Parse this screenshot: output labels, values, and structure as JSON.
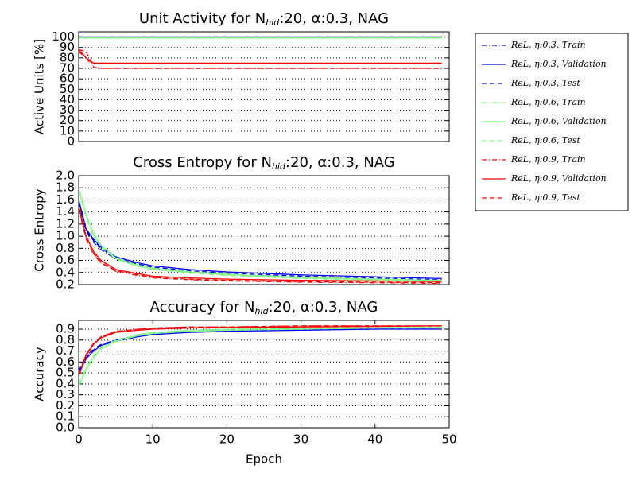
{
  "chart_data": [
    {
      "type": "line",
      "title": {
        "pre": "Unit Activity for N",
        "sub": "hid",
        "post": ":20, α:0.3, NAG"
      },
      "ylabel": "Active Units [%]",
      "legend": "outside right",
      "grid": true,
      "x": [
        0,
        1,
        2,
        3,
        5,
        8,
        10,
        15,
        20,
        30,
        40,
        49
      ],
      "xlim": [
        0,
        50
      ],
      "ylim": [
        0,
        105
      ],
      "yticks": [
        0,
        10,
        20,
        30,
        40,
        50,
        60,
        70,
        80,
        90,
        100
      ],
      "series": [
        {
          "name": "ReL, η:0.3, Train",
          "color": "#0000ff",
          "dash": "dashdot",
          "values": [
            100,
            100,
            100,
            100,
            100,
            100,
            100,
            100,
            100,
            100,
            100,
            100
          ]
        },
        {
          "name": "ReL, η:0.3, Validation",
          "color": "#0000ff",
          "dash": "solid",
          "values": [
            100,
            100,
            100,
            100,
            100,
            100,
            100,
            100,
            100,
            100,
            100,
            100
          ]
        },
        {
          "name": "ReL, η:0.3, Test",
          "color": "#0000ff",
          "dash": "dashed",
          "values": [
            100,
            100,
            100,
            100,
            100,
            100,
            100,
            100,
            100,
            100,
            100,
            100
          ]
        },
        {
          "name": "ReL, η:0.6, Train",
          "color": "#80ff80",
          "dash": "dashdot",
          "values": [
            99,
            99,
            99,
            99,
            99,
            99,
            99,
            99,
            99,
            99,
            99,
            99
          ]
        },
        {
          "name": "ReL, η:0.6, Validation",
          "color": "#80ff80",
          "dash": "solid",
          "values": [
            99,
            99,
            99,
            99,
            99,
            99,
            99,
            99,
            99,
            99,
            99,
            99
          ]
        },
        {
          "name": "ReL, η:0.6, Test",
          "color": "#80ff80",
          "dash": "dashed",
          "values": [
            99,
            99,
            99,
            99,
            99,
            99,
            99,
            99,
            99,
            99,
            99,
            99
          ]
        },
        {
          "name": "ReL, η:0.9, Train",
          "color": "#ff0000",
          "dash": "dashdot",
          "values": [
            86,
            80,
            71,
            70,
            70,
            70,
            70,
            70,
            70,
            70,
            70,
            70
          ]
        },
        {
          "name": "ReL, η:0.9, Validation",
          "color": "#ff0000",
          "dash": "solid",
          "values": [
            88,
            80,
            75,
            75,
            75,
            75,
            75,
            75,
            75,
            75,
            75,
            75
          ]
        },
        {
          "name": "ReL, η:0.9, Test",
          "color": "#ff0000",
          "dash": "dashed",
          "values": [
            88,
            86,
            71,
            70,
            70,
            70,
            70,
            70,
            70,
            70,
            70,
            70
          ]
        }
      ]
    },
    {
      "type": "line",
      "title": {
        "pre": "Cross Entropy for N",
        "sub": "hid",
        "post": ":20, α:0.3, NAG"
      },
      "ylabel": "Cross Entropy",
      "grid": true,
      "x": [
        0,
        1,
        2,
        3,
        5,
        8,
        10,
        15,
        20,
        30,
        40,
        49
      ],
      "xlim": [
        0,
        50
      ],
      "ylim": [
        0.2,
        2.0
      ],
      "yticks": [
        0.2,
        0.4,
        0.6,
        0.8,
        {
          "value": 1,
          "label": "1.0"
        },
        1.2,
        1.4,
        1.6,
        1.8,
        {
          "value": 2,
          "label": "2.0"
        }
      ],
      "series": [
        {
          "color": "#0000ff",
          "dash": "dashdot",
          "values": [
            1.55,
            1.08,
            0.9,
            0.78,
            0.62,
            0.52,
            0.47,
            0.41,
            0.37,
            0.32,
            0.29,
            0.27
          ]
        },
        {
          "color": "#0000ff",
          "dash": "solid",
          "values": [
            1.6,
            1.12,
            0.95,
            0.82,
            0.66,
            0.56,
            0.51,
            0.45,
            0.41,
            0.36,
            0.33,
            0.3
          ]
        },
        {
          "color": "#0000ff",
          "dash": "dashed",
          "values": [
            1.58,
            1.1,
            0.93,
            0.8,
            0.64,
            0.54,
            0.49,
            0.43,
            0.39,
            0.34,
            0.31,
            0.28
          ]
        },
        {
          "color": "#80ff80",
          "dash": "dashdot",
          "values": [
            1.75,
            1.3,
            1.0,
            0.82,
            0.62,
            0.5,
            0.45,
            0.39,
            0.35,
            0.3,
            0.27,
            0.25
          ]
        },
        {
          "color": "#80ff80",
          "dash": "solid",
          "values": [
            1.8,
            1.35,
            1.05,
            0.85,
            0.64,
            0.52,
            0.47,
            0.41,
            0.37,
            0.32,
            0.29,
            0.27
          ]
        },
        {
          "color": "#80ff80",
          "dash": "dashed",
          "values": [
            1.78,
            1.33,
            1.03,
            0.84,
            0.63,
            0.51,
            0.46,
            0.4,
            0.36,
            0.31,
            0.28,
            0.26
          ]
        },
        {
          "color": "#ff0000",
          "dash": "dashdot",
          "values": [
            1.45,
            0.95,
            0.7,
            0.56,
            0.42,
            0.35,
            0.31,
            0.28,
            0.26,
            0.24,
            0.23,
            0.22
          ]
        },
        {
          "color": "#ff0000",
          "dash": "solid",
          "values": [
            1.5,
            1.0,
            0.75,
            0.6,
            0.45,
            0.38,
            0.34,
            0.31,
            0.29,
            0.27,
            0.26,
            0.25
          ]
        },
        {
          "color": "#ff0000",
          "dash": "dashed",
          "values": [
            1.48,
            0.97,
            0.72,
            0.57,
            0.43,
            0.36,
            0.32,
            0.29,
            0.27,
            0.25,
            0.24,
            0.23
          ]
        }
      ]
    },
    {
      "type": "line",
      "title": {
        "pre": "Accuracy for N",
        "sub": "hid",
        "post": ":20, α:0.3, NAG"
      },
      "ylabel": "Accuracy",
      "xlabel": "Epoch",
      "grid": true,
      "x": [
        0,
        1,
        2,
        3,
        5,
        8,
        10,
        15,
        20,
        30,
        40,
        49
      ],
      "xlim": [
        0,
        50
      ],
      "ylim": [
        0,
        0.98
      ],
      "xticks": [
        0,
        10,
        20,
        30,
        40,
        50
      ],
      "yticks": [
        {
          "value": 0,
          "label": "0.0"
        },
        0.1,
        0.2,
        0.3,
        0.4,
        0.5,
        0.6,
        0.7,
        0.8,
        0.9
      ],
      "series": [
        {
          "color": "#0000ff",
          "dash": "dashdot",
          "values": [
            0.52,
            0.65,
            0.72,
            0.76,
            0.8,
            0.84,
            0.86,
            0.88,
            0.89,
            0.9,
            0.91,
            0.91
          ]
        },
        {
          "color": "#0000ff",
          "dash": "solid",
          "values": [
            0.5,
            0.63,
            0.7,
            0.75,
            0.79,
            0.83,
            0.85,
            0.87,
            0.88,
            0.89,
            0.9,
            0.9
          ]
        },
        {
          "color": "#0000ff",
          "dash": "dashed",
          "values": [
            0.51,
            0.64,
            0.71,
            0.76,
            0.8,
            0.84,
            0.86,
            0.88,
            0.89,
            0.9,
            0.9,
            0.91
          ]
        },
        {
          "color": "#80ff80",
          "dash": "dashdot",
          "values": [
            0.4,
            0.55,
            0.66,
            0.73,
            0.8,
            0.85,
            0.87,
            0.89,
            0.9,
            0.91,
            0.92,
            0.92
          ]
        },
        {
          "color": "#80ff80",
          "dash": "solid",
          "values": [
            0.38,
            0.53,
            0.64,
            0.72,
            0.79,
            0.84,
            0.86,
            0.88,
            0.89,
            0.9,
            0.91,
            0.91
          ]
        },
        {
          "color": "#80ff80",
          "dash": "dashed",
          "values": [
            0.39,
            0.54,
            0.65,
            0.72,
            0.8,
            0.85,
            0.87,
            0.89,
            0.9,
            0.91,
            0.91,
            0.92
          ]
        },
        {
          "color": "#ff0000",
          "dash": "dashdot",
          "values": [
            0.48,
            0.67,
            0.77,
            0.83,
            0.88,
            0.9,
            0.91,
            0.92,
            0.92,
            0.93,
            0.93,
            0.93
          ]
        },
        {
          "color": "#ff0000",
          "dash": "solid",
          "values": [
            0.47,
            0.66,
            0.76,
            0.82,
            0.87,
            0.89,
            0.9,
            0.91,
            0.915,
            0.92,
            0.925,
            0.93
          ]
        },
        {
          "color": "#ff0000",
          "dash": "dashed",
          "values": [
            0.48,
            0.67,
            0.77,
            0.83,
            0.88,
            0.9,
            0.91,
            0.92,
            0.92,
            0.93,
            0.93,
            0.93
          ]
        }
      ]
    }
  ]
}
